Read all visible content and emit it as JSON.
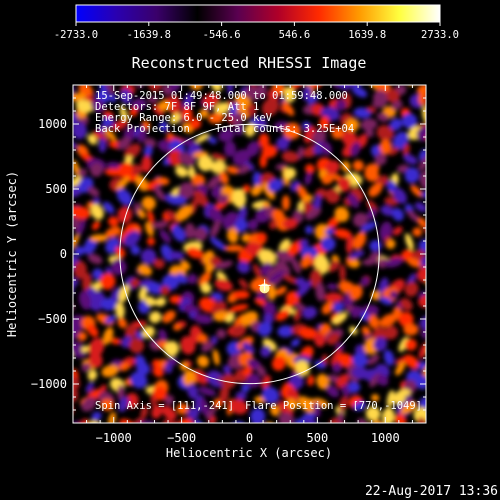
{
  "colorbar": {
    "ticks": [
      "-2733.0",
      "-1639.8",
      "-546.6",
      "546.6",
      "1639.8",
      "2733.0"
    ],
    "range": [
      -2733.0,
      2733.0
    ],
    "colormap": [
      "#0000ff",
      "#2a00b0",
      "#3a006a",
      "#000000",
      "#5a0050",
      "#b00028",
      "#ff2a00",
      "#ff9a00",
      "#ffff40",
      "#ffffff"
    ]
  },
  "chart_data": {
    "type": "heatmap",
    "title": "Reconstructed RHESSI Image",
    "xlabel": "Heliocentric X (arcsec)",
    "ylabel": "Heliocentric Y (arcsec)",
    "xlim": [
      -1300,
      1300
    ],
    "ylim": [
      -1300,
      1300
    ],
    "xticks": [
      -1000,
      -500,
      0,
      500,
      1000
    ],
    "yticks": [
      -1000,
      -500,
      0,
      500,
      1000
    ],
    "xtick_labels": [
      "−1000",
      "−500",
      "0",
      "500",
      "1000"
    ],
    "ytick_labels": [
      "−1000",
      "−500",
      "0",
      "500",
      "1000"
    ],
    "solar_limb_radius_arcsec": 955,
    "source_marker": [
      111,
      -241
    ],
    "info_lines": [
      "15-Sep-2015 01:49:48.000 to 01:59:48.000",
      "Detectors: 7F 8F 9F, Att 1",
      "Energy Range: 6.0 - 25.0 keV",
      "Back Projection    Total counts: 3.25E+04"
    ],
    "spin_axis": "Spin Axis = [111,-241]",
    "flare_position": "Flare Position = [770,-1049]"
  },
  "footer": {
    "timestamp": "22-Aug-2017 13:36"
  }
}
